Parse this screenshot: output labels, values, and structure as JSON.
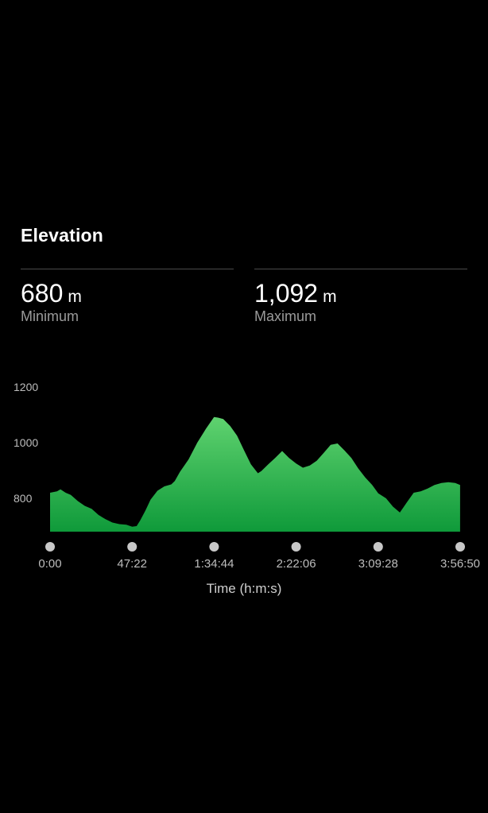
{
  "title": "Elevation",
  "stats": {
    "minimum": {
      "value": "680",
      "unit": "m",
      "label": "Minimum"
    },
    "maximum": {
      "value": "1,092",
      "unit": "m",
      "label": "Maximum"
    }
  },
  "colors": {
    "fill_top": "#5fd26f",
    "fill_bottom": "#0f9a3a",
    "marker": "#c8c8c8"
  },
  "chart_data": {
    "type": "area",
    "xlabel": "Time (h:m:s)",
    "ylabel": "",
    "ylim": [
      680,
      1200
    ],
    "y_ticks": [
      1200,
      1000,
      800
    ],
    "x_ticks": [
      "0:00",
      "47:22",
      "1:34:44",
      "2:22:06",
      "3:09:28",
      "3:56:50"
    ],
    "x_tick_minutes": [
      0,
      47.37,
      94.73,
      142.1,
      189.47,
      236.83
    ],
    "x_range_minutes": [
      0,
      236.83
    ],
    "grid": false,
    "series": [
      {
        "x": [
          0,
          4,
          6,
          9,
          12,
          16,
          20,
          24,
          28,
          32,
          36,
          40,
          44,
          47.4,
          50,
          52,
          55,
          58,
          62,
          66,
          70,
          72,
          75,
          80,
          85,
          90,
          94.7,
          97,
          100,
          104,
          108,
          112,
          116,
          120,
          122,
          126,
          130,
          134,
          138,
          142.1,
          146,
          150,
          154,
          158,
          162,
          166,
          170,
          174,
          178,
          182,
          186,
          189.5,
          194,
          198,
          202,
          206,
          210,
          214,
          218,
          222,
          226,
          230,
          234,
          236.8
        ],
        "y": [
          820,
          825,
          832,
          820,
          812,
          790,
          773,
          762,
          740,
          725,
          713,
          707,
          705,
          698,
          700,
          720,
          755,
          795,
          827,
          843,
          850,
          862,
          895,
          940,
          1000,
          1050,
          1092,
          1090,
          1085,
          1060,
          1025,
          973,
          922,
          890,
          898,
          922,
          945,
          970,
          945,
          925,
          910,
          918,
          935,
          963,
          992,
          997,
          972,
          945,
          907,
          875,
          848,
          818,
          800,
          770,
          749,
          785,
          820,
          825,
          835,
          848,
          855,
          858,
          855,
          848
        ]
      }
    ]
  }
}
